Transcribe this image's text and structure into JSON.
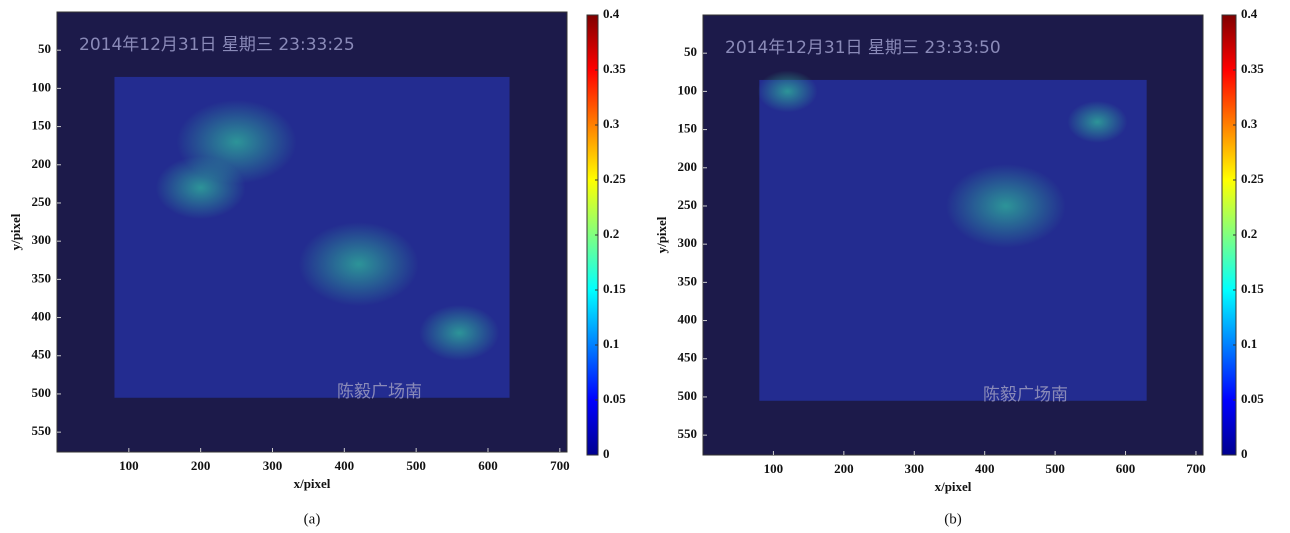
{
  "chart_data": [
    {
      "type": "heatmap",
      "caption": "(a)",
      "xlabel": "x/pixel",
      "ylabel": "y/pixel",
      "annotations": [
        "2014年12月31日 星期三 23:33:25",
        "陈毅广场南"
      ],
      "xlim": [
        0,
        710
      ],
      "xticks": [
        100,
        200,
        300,
        400,
        500,
        600,
        700
      ],
      "ylim": [
        0,
        576
      ],
      "yticks": [
        50,
        100,
        150,
        200,
        250,
        300,
        350,
        400,
        450,
        500,
        550
      ],
      "colormap": "jet",
      "clim": [
        0,
        0.4
      ],
      "cticks": [
        0,
        0.05,
        0.1,
        0.15,
        0.2,
        0.25,
        0.3,
        0.35,
        0.4
      ]
    },
    {
      "type": "heatmap",
      "caption": "(b)",
      "xlabel": "x/pixel",
      "ylabel": "y/pixel",
      "annotations": [
        "2014年12月31日 星期三 23:33:50",
        "陈毅广场南"
      ],
      "xlim": [
        0,
        710
      ],
      "xticks": [
        100,
        200,
        300,
        400,
        500,
        600,
        700
      ],
      "ylim": [
        0,
        576
      ],
      "yticks": [
        50,
        100,
        150,
        200,
        250,
        300,
        350,
        400,
        450,
        500,
        550
      ],
      "colormap": "jet",
      "clim": [
        0,
        0.4
      ],
      "cticks": [
        0,
        0.05,
        0.1,
        0.15,
        0.2,
        0.25,
        0.3,
        0.35,
        0.4
      ]
    }
  ]
}
